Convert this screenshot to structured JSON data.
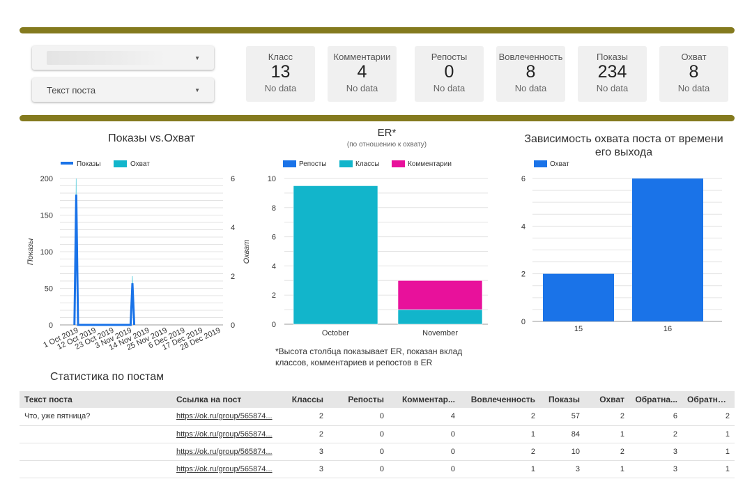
{
  "colors": {
    "accent_bar": "#847a1e",
    "blue": "#1a73e8",
    "teal": "#12b5cb",
    "magenta": "#e8119b"
  },
  "filters": {
    "first_value": "",
    "second_value": "Текст поста"
  },
  "scorecards": [
    {
      "label": "Класс",
      "value": "13",
      "sub": "No data"
    },
    {
      "label": "Комментарии",
      "value": "4",
      "sub": "No data"
    },
    {
      "label": "Репосты",
      "value": "0",
      "sub": "No data"
    },
    {
      "label": "Вовлеченность",
      "value": "8",
      "sub": "No data"
    },
    {
      "label": "Показы",
      "value": "234",
      "sub": "No data"
    },
    {
      "label": "Охват",
      "value": "8",
      "sub": "No data"
    }
  ],
  "chart_data": [
    {
      "type": "line",
      "title": "Показы vs.Охват",
      "legend": [
        "Показы",
        "Охват"
      ],
      "ylabel": "Показы",
      "y2label": "Охват",
      "ylim": [
        0,
        200
      ],
      "y2lim": [
        0,
        6
      ],
      "yticks": [
        "0",
        "50",
        "100",
        "150",
        "200"
      ],
      "y2ticks": [
        "0",
        "2",
        "4",
        "6"
      ],
      "x_ticks": [
        "1 Oct 2019",
        "12 Oct 2019",
        "23 Oct 2019",
        "3 Nov 2019",
        "14 Nov 2019",
        "25 Nov 2019",
        "6 Dec 2019",
        "17 Dec 2019",
        "28 Dec 2019"
      ],
      "series": [
        {
          "name": "Показы",
          "points": [
            [
              8,
              0
            ],
            [
              9,
              178
            ],
            [
              10,
              0
            ],
            [
              39,
              0
            ],
            [
              40,
              57
            ],
            [
              41,
              0
            ]
          ]
        },
        {
          "name": "Охват",
          "points": [
            [
              8,
              0
            ],
            [
              9,
              6
            ],
            [
              10,
              0
            ],
            [
              39,
              0
            ],
            [
              40,
              2
            ],
            [
              41,
              0
            ]
          ]
        }
      ]
    },
    {
      "type": "bar",
      "stacked": true,
      "title": "ER*",
      "subtitle": "(по отношению к охвату)",
      "legend": [
        "Репосты",
        "Классы",
        "Комментарии"
      ],
      "categories": [
        "October",
        "November"
      ],
      "ylim": [
        0,
        10
      ],
      "yticks": [
        "0",
        "2",
        "4",
        "6",
        "8",
        "10"
      ],
      "series": [
        {
          "name": "Репосты",
          "values": [
            0,
            0
          ]
        },
        {
          "name": "Классы",
          "values": [
            9.5,
            1
          ]
        },
        {
          "name": "Комментарии",
          "values": [
            0,
            2
          ]
        }
      ],
      "footnote": "*Высота столбца показывает ER, показан вклад классов, комментариев и репостов в ER"
    },
    {
      "type": "bar",
      "title": "Зависимость охвата поста от времени его выхода",
      "legend": [
        "Охват"
      ],
      "categories": [
        "15",
        "16"
      ],
      "values": [
        2,
        6
      ],
      "ylim": [
        0,
        6
      ],
      "yticks": [
        "0",
        "2",
        "4",
        "6"
      ]
    }
  ],
  "table": {
    "title": "Статистика по постам",
    "columns": [
      "Текст поста",
      "Ссылка на пост",
      "Классы",
      "Репосты",
      "Комментар...",
      "Вовлеченность",
      "Показы",
      "Охват",
      "Обратна...",
      "Обратная..."
    ],
    "rows": [
      [
        "Что, уже пятница?",
        "https://ok.ru/group/565874...",
        "2",
        "0",
        "4",
        "2",
        "57",
        "2",
        "6",
        "2"
      ],
      [
        "",
        "https://ok.ru/group/565874...",
        "2",
        "0",
        "0",
        "1",
        "84",
        "1",
        "2",
        "1"
      ],
      [
        "",
        "https://ok.ru/group/565874...",
        "3",
        "0",
        "0",
        "2",
        "10",
        "2",
        "3",
        "1"
      ],
      [
        "",
        "https://ok.ru/group/565874...",
        "3",
        "0",
        "0",
        "1",
        "3",
        "1",
        "3",
        "1"
      ]
    ]
  }
}
